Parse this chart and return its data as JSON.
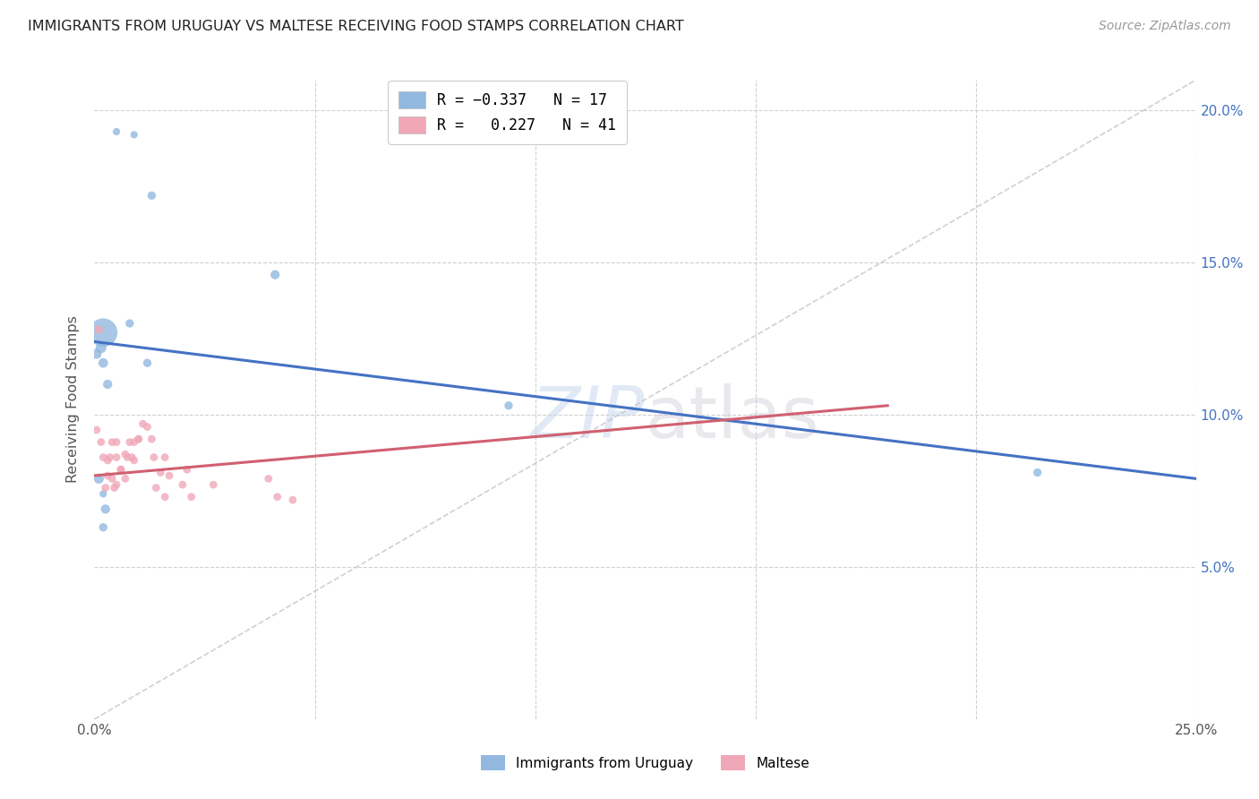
{
  "title": "IMMIGRANTS FROM URUGUAY VS MALTESE RECEIVING FOOD STAMPS CORRELATION CHART",
  "source": "Source: ZipAtlas.com",
  "ylabel": "Receiving Food Stamps",
  "xlim": [
    0.0,
    0.25
  ],
  "ylim": [
    0.0,
    0.21
  ],
  "blue_color": "#92b8e0",
  "pink_color": "#f0a8b8",
  "blue_line_color": "#4472c4",
  "pink_line_color": "#d06070",
  "dashed_line_color": "#c8bcc8",
  "blue_line_x0": 0.0,
  "blue_line_y0": 0.124,
  "blue_line_x1": 0.25,
  "blue_line_y1": 0.079,
  "pink_line_x0": 0.0,
  "pink_line_y0": 0.08,
  "pink_line_x1": 0.18,
  "pink_line_y1": 0.103,
  "blue_scatter_x": [
    0.005,
    0.009,
    0.013,
    0.008,
    0.012,
    0.002,
    0.0015,
    0.0005,
    0.002,
    0.003,
    0.001,
    0.002,
    0.0025,
    0.002,
    0.041,
    0.094,
    0.214
  ],
  "blue_scatter_y": [
    0.193,
    0.192,
    0.172,
    0.13,
    0.117,
    0.127,
    0.122,
    0.12,
    0.117,
    0.11,
    0.079,
    0.074,
    0.069,
    0.063,
    0.146,
    0.103,
    0.081
  ],
  "blue_scatter_size": [
    35,
    35,
    45,
    45,
    45,
    520,
    75,
    65,
    60,
    55,
    65,
    35,
    55,
    45,
    55,
    45,
    45
  ],
  "pink_scatter_x": [
    0.001,
    0.0005,
    0.0015,
    0.002,
    0.003,
    0.003,
    0.0025,
    0.004,
    0.0035,
    0.005,
    0.005,
    0.004,
    0.0045,
    0.006,
    0.005,
    0.007,
    0.006,
    0.008,
    0.0075,
    0.007,
    0.009,
    0.0085,
    0.01,
    0.009,
    0.011,
    0.01,
    0.012,
    0.013,
    0.0135,
    0.015,
    0.014,
    0.016,
    0.017,
    0.016,
    0.021,
    0.02,
    0.022,
    0.0395,
    0.0415,
    0.027,
    0.045
  ],
  "pink_scatter_y": [
    0.128,
    0.095,
    0.091,
    0.086,
    0.085,
    0.08,
    0.076,
    0.091,
    0.086,
    0.091,
    0.086,
    0.079,
    0.076,
    0.082,
    0.077,
    0.087,
    0.082,
    0.091,
    0.086,
    0.079,
    0.091,
    0.086,
    0.092,
    0.085,
    0.097,
    0.092,
    0.096,
    0.092,
    0.086,
    0.081,
    0.076,
    0.086,
    0.08,
    0.073,
    0.082,
    0.077,
    0.073,
    0.079,
    0.073,
    0.077,
    0.072
  ],
  "pink_scatter_size": [
    45,
    40,
    40,
    40,
    40,
    40,
    40,
    40,
    40,
    40,
    40,
    40,
    40,
    40,
    40,
    40,
    40,
    40,
    40,
    40,
    40,
    40,
    40,
    40,
    40,
    40,
    40,
    40,
    40,
    40,
    40,
    40,
    40,
    40,
    40,
    40,
    40,
    40,
    40,
    40,
    40
  ]
}
